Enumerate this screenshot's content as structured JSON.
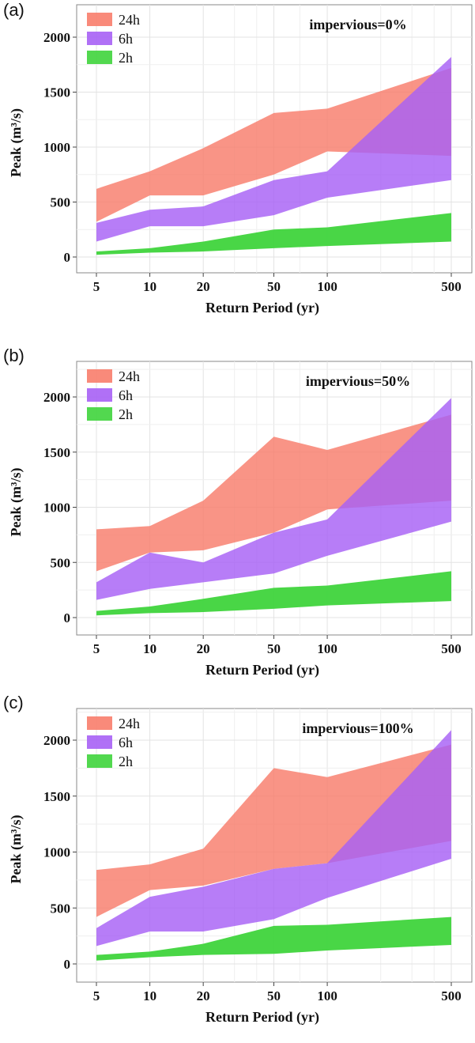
{
  "colors": {
    "24h": "#f87d6b",
    "6h": "#a760f5",
    "2h": "#3fd43c"
  },
  "chart_data": [
    {
      "type": "area",
      "panel_label": "(a)",
      "annotation": "impervious=0%",
      "xlabel": "Return Period (yr)",
      "ylabel": "Peak (m³/s)",
      "x_scale": "log",
      "xlim": [
        5,
        500
      ],
      "ylim": [
        -80,
        2150
      ],
      "x": [
        5,
        10,
        20,
        50,
        100,
        500
      ],
      "x_tick_labels": [
        "5",
        "10",
        "20",
        "50",
        "100",
        "500"
      ],
      "y_ticks": [
        0,
        500,
        1000,
        1500,
        2000
      ],
      "grid": true,
      "legend_position": "top-left",
      "series": [
        {
          "name": "24h",
          "color_key": "24h",
          "lower": [
            320,
            560,
            560,
            750,
            960,
            920
          ],
          "upper": [
            620,
            780,
            990,
            1310,
            1350,
            1720
          ]
        },
        {
          "name": "6h",
          "color_key": "6h",
          "lower": [
            140,
            280,
            280,
            380,
            540,
            700
          ],
          "upper": [
            310,
            430,
            460,
            700,
            780,
            1820
          ]
        },
        {
          "name": "2h",
          "color_key": "2h",
          "lower": [
            20,
            40,
            50,
            80,
            100,
            140
          ],
          "upper": [
            50,
            80,
            140,
            250,
            270,
            400
          ]
        }
      ]
    },
    {
      "type": "area",
      "panel_label": "(b)",
      "annotation": "impervious=50%",
      "xlabel": "Return Period  (yr)",
      "ylabel": "Peak (m³/s)",
      "x_scale": "log",
      "xlim": [
        5,
        500
      ],
      "ylim": [
        -80,
        2300
      ],
      "x": [
        5,
        10,
        20,
        50,
        100,
        500
      ],
      "x_tick_labels": [
        "5",
        "10",
        "20",
        "50",
        "100",
        "500"
      ],
      "y_ticks": [
        0,
        500,
        1000,
        1500,
        2000
      ],
      "grid": true,
      "legend_position": "top-left",
      "series": [
        {
          "name": "24h",
          "color_key": "24h",
          "lower": [
            420,
            590,
            610,
            770,
            980,
            1060
          ],
          "upper": [
            800,
            830,
            1060,
            1640,
            1520,
            1840
          ]
        },
        {
          "name": "6h",
          "color_key": "6h",
          "lower": [
            160,
            260,
            320,
            400,
            560,
            870
          ],
          "upper": [
            320,
            590,
            500,
            770,
            890,
            1990
          ]
        },
        {
          "name": "2h",
          "color_key": "2h",
          "lower": [
            20,
            40,
            50,
            80,
            110,
            150
          ],
          "upper": [
            60,
            100,
            170,
            270,
            290,
            420
          ]
        }
      ]
    },
    {
      "type": "area",
      "panel_label": "(c)",
      "annotation": "impervious=100%",
      "xlabel": "Return Period (yr)",
      "ylabel": "Peak (m³/s)",
      "x_scale": "log",
      "xlim": [
        5,
        500
      ],
      "ylim": [
        -80,
        2300
      ],
      "x": [
        5,
        10,
        20,
        50,
        100,
        500
      ],
      "x_tick_labels": [
        "5",
        "10",
        "20",
        "50",
        "100",
        "500"
      ],
      "y_ticks": [
        0,
        500,
        1000,
        1500,
        2000
      ],
      "grid": true,
      "legend_position": "top-left",
      "series": [
        {
          "name": "24h",
          "color_key": "24h",
          "lower": [
            420,
            660,
            700,
            850,
            900,
            1100
          ],
          "upper": [
            840,
            890,
            1030,
            1750,
            1670,
            1960
          ]
        },
        {
          "name": "6h",
          "color_key": "6h",
          "lower": [
            160,
            290,
            290,
            400,
            590,
            940
          ],
          "upper": [
            320,
            600,
            690,
            850,
            900,
            2090
          ]
        },
        {
          "name": "2h",
          "color_key": "2h",
          "lower": [
            30,
            60,
            80,
            90,
            120,
            170
          ],
          "upper": [
            80,
            110,
            180,
            340,
            350,
            420
          ]
        }
      ]
    }
  ]
}
